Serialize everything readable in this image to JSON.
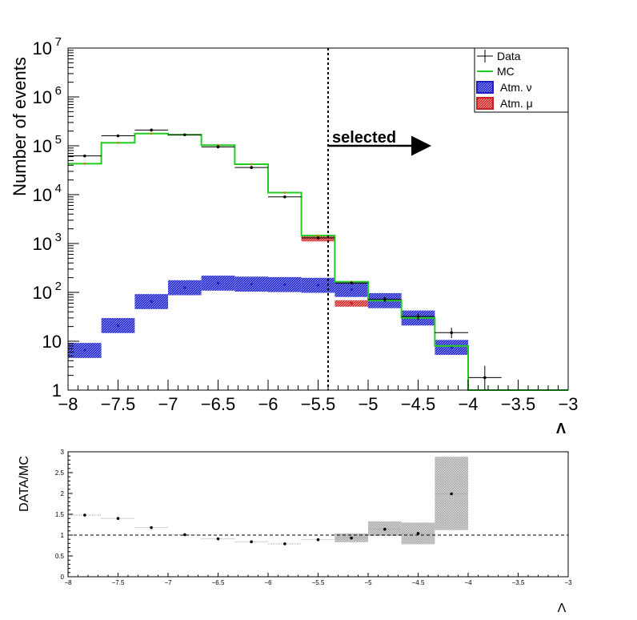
{
  "chart_data": [
    {
      "type": "step-histogram",
      "xlabel": "Λ",
      "ylabel": "Number of events",
      "xlim": [
        -8,
        -3
      ],
      "ylim": [
        1,
        10000000
      ],
      "yscale": "log",
      "bin_edges": [
        -8,
        -7.667,
        -7.333,
        -7.0,
        -6.667,
        -6.333,
        -6.0,
        -5.667,
        -5.333,
        -5.0,
        -4.667,
        -4.333,
        -4.0,
        -3.667,
        -3.333,
        -3.0
      ],
      "series": [
        {
          "name": "Data",
          "color": "#000000",
          "values": [
            62000,
            160000,
            210000,
            168000,
            95000,
            36000,
            9000,
            1300,
            155,
            72,
            32,
            15,
            1.8,
            null,
            null
          ]
        },
        {
          "name": "MC",
          "color": "#22cc22",
          "values": [
            43000,
            115000,
            178000,
            168000,
            103000,
            42000,
            11000,
            1450,
            165,
            68,
            30,
            8,
            1,
            1,
            1
          ]
        },
        {
          "name": "Atm. ν",
          "color": "#1f1fc8",
          "values": [
            6.5,
            21,
            65,
            125,
            155,
            148,
            145,
            140,
            115,
            68,
            30,
            7.5,
            null,
            null,
            null
          ]
        },
        {
          "name": "Atm. μ",
          "color": "#cc1f1f",
          "values": [
            null,
            null,
            null,
            null,
            null,
            null,
            null,
            1300,
            60,
            null,
            null,
            null,
            null,
            null,
            null
          ]
        }
      ],
      "cut": {
        "x": -5.4,
        "label": "selected"
      },
      "legend": {
        "position": "top-right",
        "entries": [
          "Data",
          "MC",
          "Atm. ν",
          "Atm. μ"
        ]
      },
      "x_ticks": [
        "−8",
        "−7.5",
        "−7",
        "−6.5",
        "−6",
        "−5.5",
        "−5",
        "−4.5",
        "−4",
        "−3.5",
        "−3"
      ],
      "y_ticks": [
        {
          "v": 1,
          "base": "1",
          "exp": ""
        },
        {
          "v": 10,
          "base": "10",
          "exp": ""
        },
        {
          "v": 100,
          "base": "10",
          "exp": "2"
        },
        {
          "v": 1000,
          "base": "10",
          "exp": "3"
        },
        {
          "v": 10000,
          "base": "10",
          "exp": "4"
        },
        {
          "v": 100000,
          "base": "10",
          "exp": "5"
        },
        {
          "v": 1000000,
          "base": "10",
          "exp": "6"
        },
        {
          "v": 10000000,
          "base": "10",
          "exp": "7"
        }
      ]
    },
    {
      "type": "ratio",
      "xlabel": "Λ",
      "ylabel": "DATA/MC",
      "xlim": [
        -8,
        -3
      ],
      "ylim": [
        0,
        3
      ],
      "reference_line": 1,
      "points": [
        {
          "x": -7.833,
          "y": 1.48
        },
        {
          "x": -7.5,
          "y": 1.4
        },
        {
          "x": -7.167,
          "y": 1.18
        },
        {
          "x": -6.833,
          "y": 1.01
        },
        {
          "x": -6.5,
          "y": 0.91
        },
        {
          "x": -6.167,
          "y": 0.84
        },
        {
          "x": -5.833,
          "y": 0.79
        },
        {
          "x": -5.5,
          "y": 0.89
        },
        {
          "x": -5.167,
          "y": 0.93
        },
        {
          "x": -4.833,
          "y": 1.14
        },
        {
          "x": -4.5,
          "y": 1.04
        },
        {
          "x": -4.167,
          "y": 1.99
        }
      ],
      "uncertainty_bands": [
        {
          "x0": -5.333,
          "x1": -5.0,
          "lo": 0.83,
          "hi": 1.04
        },
        {
          "x0": -5.0,
          "x1": -4.667,
          "lo": 0.98,
          "hi": 1.33
        },
        {
          "x0": -4.667,
          "x1": -4.333,
          "lo": 0.78,
          "hi": 1.3
        },
        {
          "x0": -4.333,
          "x1": -4.0,
          "lo": 1.12,
          "hi": 2.88
        }
      ],
      "x_ticks": [
        "−8",
        "−7.5",
        "−7",
        "−6.5",
        "−6",
        "−5.5",
        "−5",
        "−4.5",
        "−4",
        "−3.5",
        "−3"
      ],
      "y_ticks": [
        "0",
        "0.5",
        "1",
        "1.5",
        "2",
        "2.5",
        "3"
      ]
    }
  ]
}
